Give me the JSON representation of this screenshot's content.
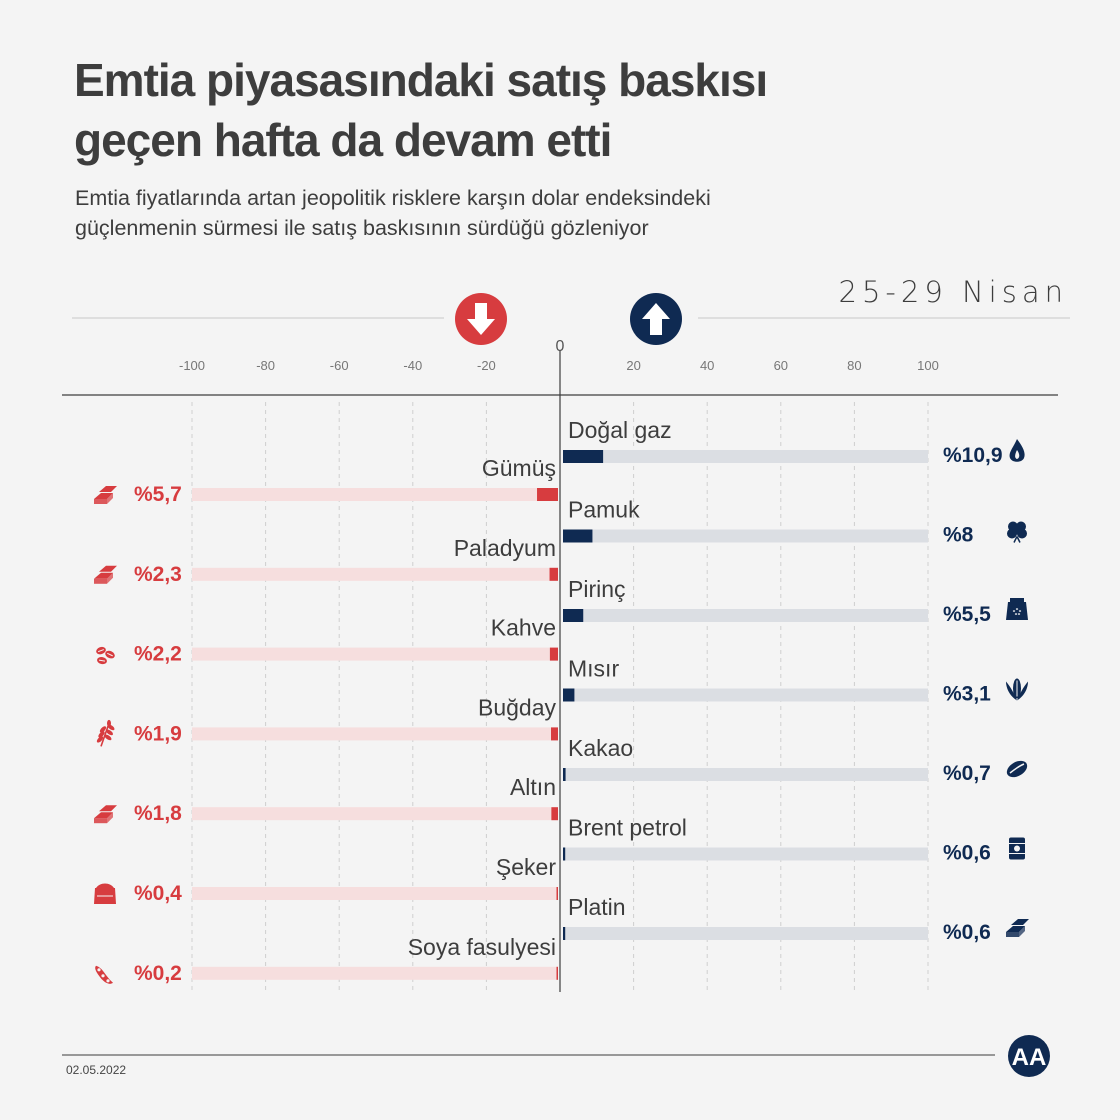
{
  "title_line1": "Emtia piyasasındaki satış baskısı",
  "title_line2": "geçen hafta da devam etti",
  "subtitle_line1": "Emtia fiyatlarında artan jeopolitik risklere karşın dolar endeksindeki",
  "subtitle_line2": "güçlenmenin sürmesi ile satış baskısının sürdüğü gözleniyor",
  "date_range": "25-29 Nisan",
  "footer_date": "02.05.2022",
  "logo_text": "AA",
  "colors": {
    "negative": "#d73c3f",
    "negative_track": "#f6dede",
    "positive": "#0f2a52",
    "positive_track": "#dbdee3",
    "text": "#3d3d3d"
  },
  "chart_data": {
    "type": "bar",
    "orientation": "horizontal-diverging",
    "unit": "%",
    "xlim": [
      -100,
      100
    ],
    "ticks": [
      -100,
      -80,
      -60,
      -40,
      -20,
      0,
      20,
      40,
      60,
      80,
      100
    ],
    "grid": true,
    "decreases": [
      {
        "name": "Gümüş",
        "value": -5.7,
        "label": "%5,7",
        "icon": "silver-bars-icon"
      },
      {
        "name": "Paladyum",
        "value": -2.3,
        "label": "%2,3",
        "icon": "palladium-bars-icon"
      },
      {
        "name": "Kahve",
        "value": -2.2,
        "label": "%2,2",
        "icon": "coffee-beans-icon"
      },
      {
        "name": "Buğday",
        "value": -1.9,
        "label": "%1,9",
        "icon": "wheat-icon"
      },
      {
        "name": "Altın",
        "value": -1.8,
        "label": "%1,8",
        "icon": "gold-bars-icon"
      },
      {
        "name": "Şeker",
        "value": -0.4,
        "label": "%0,4",
        "icon": "sugar-sack-icon"
      },
      {
        "name": "Soya fasulyesi",
        "value": -0.2,
        "label": "%0,2",
        "icon": "soybean-icon"
      }
    ],
    "increases": [
      {
        "name": "Doğal gaz",
        "value": 10.9,
        "label": "%10,9",
        "icon": "gas-flame-icon"
      },
      {
        "name": "Pamuk",
        "value": 8,
        "label": "%8",
        "icon": "cotton-icon"
      },
      {
        "name": "Pirinç",
        "value": 5.5,
        "label": "%5,5",
        "icon": "rice-sack-icon"
      },
      {
        "name": "Mısır",
        "value": 3.1,
        "label": "%3,1",
        "icon": "corn-icon"
      },
      {
        "name": "Kakao",
        "value": 0.7,
        "label": "%0,7",
        "icon": "cocoa-icon"
      },
      {
        "name": "Brent petrol",
        "value": 0.6,
        "label": "%0,6",
        "icon": "oil-barrel-icon"
      },
      {
        "name": "Platin",
        "value": 0.6,
        "label": "%0,6",
        "icon": "platinum-bars-icon"
      }
    ]
  }
}
